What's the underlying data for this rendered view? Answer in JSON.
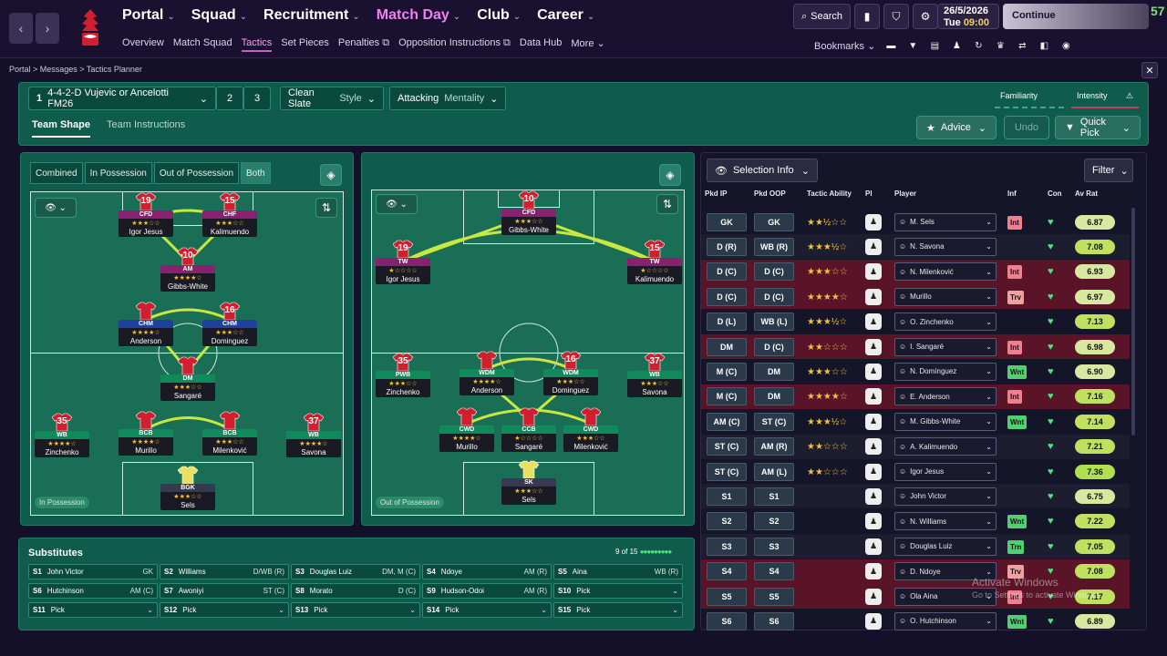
{
  "header": {
    "nav": [
      "Portal",
      "Squad",
      "Recruitment",
      "Match Day",
      "Club",
      "Career"
    ],
    "subnav": [
      "Overview",
      "Match Squad",
      "Tactics",
      "Set Pieces",
      "Penalties",
      "Opposition Instructions",
      "Data Hub",
      "More"
    ],
    "search": "Search",
    "date": "26/5/2026",
    "day": "Tue",
    "time": "09:00",
    "continue": "Continue",
    "speed": "57",
    "bookmarks": "Bookmarks"
  },
  "breadcrumb": "Portal > Messages > Tactics Planner",
  "tactic": {
    "slot": "1",
    "name": "4-4-2-D Vujevic or Ancelotti FM26",
    "slot2": "2",
    "slot3": "3",
    "style_value": "Clean Slate",
    "style_label": "Style",
    "mentality_value": "Attacking",
    "mentality_label": "Mentality",
    "familiarity": "Familiarity",
    "intensity": "Intensity"
  },
  "tabs": {
    "shape": "Team Shape",
    "instructions": "Team Instructions"
  },
  "actions": {
    "advice": "Advice",
    "undo": "Undo",
    "quick_pick": "Quick Pick"
  },
  "modes": [
    "Combined",
    "In Possession",
    "Out of Possession",
    "Both"
  ],
  "pitch_labels": {
    "in": "In Possession",
    "out": "Out of Possession"
  },
  "in_possession": [
    {
      "num": "19",
      "role": "CFD",
      "name": "Igor Jesus",
      "stars": "★★★☆☆",
      "cls": "r-att"
    },
    {
      "num": "15",
      "role": "CHF",
      "name": "Kalimuendo",
      "stars": "★★★☆☆",
      "cls": "r-att"
    },
    {
      "num": "10",
      "role": "AM",
      "name": "Gibbs-White",
      "stars": "★★★★☆",
      "cls": "r-am"
    },
    {
      "num": "",
      "role": "CHM",
      "name": "Anderson",
      "stars": "★★★★☆",
      "cls": "r-cm"
    },
    {
      "num": "16",
      "role": "CHM",
      "name": "Dominguez",
      "stars": "★★★☆☆",
      "cls": "r-cm"
    },
    {
      "num": "",
      "role": "DM",
      "name": "Sangaré",
      "stars": "★★★☆☆",
      "cls": "r-dm"
    },
    {
      "num": "35",
      "role": "WB",
      "name": "Zinchenko",
      "stars": "★★★★☆",
      "cls": "r-def"
    },
    {
      "num": "",
      "role": "BCB",
      "name": "Murillo",
      "stars": "★★★★☆",
      "cls": "r-def"
    },
    {
      "num": "",
      "role": "BCB",
      "name": "Milenković",
      "stars": "★★★☆☆",
      "cls": "r-def"
    },
    {
      "num": "37",
      "role": "WB",
      "name": "Savona",
      "stars": "★★★★☆",
      "cls": "r-def"
    },
    {
      "num": "",
      "role": "BGK",
      "name": "Sels",
      "stars": "★★★☆☆",
      "cls": "r-gk"
    }
  ],
  "out_possession": [
    {
      "num": "10",
      "role": "CFD",
      "name": "Gibbs-White",
      "stars": "★★★☆☆",
      "cls": "r-att"
    },
    {
      "num": "19",
      "role": "TW",
      "name": "Igor Jesus",
      "stars": "★☆☆☆☆",
      "cls": "r-att"
    },
    {
      "num": "15",
      "role": "TW",
      "name": "Kalimuendo",
      "stars": "★☆☆☆☆",
      "cls": "r-att"
    },
    {
      "num": "35",
      "role": "PWB",
      "name": "Zinchenko",
      "stars": "★★★☆☆",
      "cls": "r-def"
    },
    {
      "num": "",
      "role": "WDM",
      "name": "Anderson",
      "stars": "★★★★☆",
      "cls": "r-def"
    },
    {
      "num": "16",
      "role": "WDM",
      "name": "Dominguez",
      "stars": "★★★☆☆",
      "cls": "r-def"
    },
    {
      "num": "37",
      "role": "WB",
      "name": "Savona",
      "stars": "★★★☆☆",
      "cls": "r-def"
    },
    {
      "num": "",
      "role": "CWD",
      "name": "Murillo",
      "stars": "★★★★☆",
      "cls": "r-def"
    },
    {
      "num": "",
      "role": "CCB",
      "name": "Sangaré",
      "stars": "★☆☆☆☆",
      "cls": "r-def"
    },
    {
      "num": "",
      "role": "CWD",
      "name": "Milenković",
      "stars": "★★★☆☆",
      "cls": "r-def"
    },
    {
      "num": "",
      "role": "SK",
      "name": "Sels",
      "stars": "★★★☆☆",
      "cls": "r-gk"
    }
  ],
  "selection": {
    "info": "Selection Info",
    "filter": "Filter",
    "headers": [
      "Pkd IP",
      "Pkd OOP",
      "Tactic Ability",
      "PI",
      "Player",
      "Inf",
      "Con",
      "Av Rat"
    ],
    "rows": [
      {
        "ip": "GK",
        "oop": "GK",
        "stars": "★★½☆☆",
        "player": "M. Sels",
        "inf": "Int",
        "infcls": "int",
        "rat": "6.87",
        "ratc": "#d8e8a0",
        "hot": false
      },
      {
        "ip": "D (R)",
        "oop": "WB (R)",
        "stars": "★★★½☆",
        "player": "N. Savona",
        "inf": "",
        "infcls": "",
        "rat": "7.08",
        "ratc": "#c0e060",
        "hot": false
      },
      {
        "ip": "D (C)",
        "oop": "D (C)",
        "stars": "★★★☆☆",
        "player": "N. Milenković",
        "inf": "Int",
        "infcls": "int",
        "rat": "6.93",
        "ratc": "#d8e8a0",
        "hot": true
      },
      {
        "ip": "D (C)",
        "oop": "D (C)",
        "stars": "★★★★☆",
        "player": "Murillo",
        "inf": "Trv",
        "infcls": "trv",
        "rat": "6.97",
        "ratc": "#d8e8a0",
        "hot": true
      },
      {
        "ip": "D (L)",
        "oop": "WB (L)",
        "stars": "★★★½☆",
        "player": "O. Zinchenko",
        "inf": "",
        "infcls": "",
        "rat": "7.13",
        "ratc": "#c0e060",
        "hot": false
      },
      {
        "ip": "DM",
        "oop": "D (C)",
        "stars": "★★☆☆☆",
        "player": "I. Sangaré",
        "inf": "Int",
        "infcls": "int",
        "rat": "6.98",
        "ratc": "#d8e8a0",
        "hot": true
      },
      {
        "ip": "M (C)",
        "oop": "DM",
        "stars": "★★★☆☆",
        "player": "N. Domínguez",
        "inf": "Wnt",
        "infcls": "wnt",
        "rat": "6.90",
        "ratc": "#d8e8a0",
        "hot": false
      },
      {
        "ip": "M (C)",
        "oop": "DM",
        "stars": "★★★★☆",
        "player": "E. Anderson",
        "inf": "Int",
        "infcls": "int",
        "rat": "7.16",
        "ratc": "#c0e060",
        "hot": true
      },
      {
        "ip": "AM (C)",
        "oop": "ST (C)",
        "stars": "★★★½☆",
        "player": "M. Gibbs-White",
        "inf": "Wnt",
        "infcls": "wnt",
        "rat": "7.14",
        "ratc": "#c0e060",
        "hot": false
      },
      {
        "ip": "ST (C)",
        "oop": "AM (R)",
        "stars": "★★☆☆☆",
        "player": "A. Kalimuendo",
        "inf": "",
        "infcls": "",
        "rat": "7.21",
        "ratc": "#c0e060",
        "hot": false
      },
      {
        "ip": "ST (C)",
        "oop": "AM (L)",
        "stars": "★★☆☆☆",
        "player": "Igor Jesus",
        "inf": "",
        "infcls": "",
        "rat": "7.36",
        "ratc": "#b0e050",
        "hot": false
      },
      {
        "ip": "S1",
        "oop": "S1",
        "stars": "",
        "player": "John Victor",
        "inf": "",
        "infcls": "",
        "rat": "6.75",
        "ratc": "#d8e8a0",
        "hot": false
      },
      {
        "ip": "S2",
        "oop": "S2",
        "stars": "",
        "player": "N. Williams",
        "inf": "Wnt",
        "infcls": "wnt",
        "rat": "7.22",
        "ratc": "#c0e060",
        "hot": false
      },
      {
        "ip": "S3",
        "oop": "S3",
        "stars": "",
        "player": "Douglas Luiz",
        "inf": "Trn",
        "infcls": "trn",
        "rat": "7.05",
        "ratc": "#c0e060",
        "hot": false
      },
      {
        "ip": "S4",
        "oop": "S4",
        "stars": "",
        "player": "D. Ndoye",
        "inf": "Trv",
        "infcls": "trv",
        "rat": "7.08",
        "ratc": "#c0e060",
        "hot": true
      },
      {
        "ip": "S5",
        "oop": "S5",
        "stars": "",
        "player": "Ola Aina",
        "inf": "Int",
        "infcls": "int",
        "rat": "7.17",
        "ratc": "#c0e060",
        "hot": true
      },
      {
        "ip": "S6",
        "oop": "S6",
        "stars": "",
        "player": "O. Hutchinson",
        "inf": "Wnt",
        "infcls": "wnt",
        "rat": "6.89",
        "ratc": "#d8e8a0",
        "hot": false
      }
    ]
  },
  "substitutes": {
    "title": "Substitutes",
    "count": "9 of 15",
    "items": [
      {
        "s": "S1",
        "name": "John Victor",
        "pos": "GK"
      },
      {
        "s": "S2",
        "name": "Williams",
        "pos": "D/WB (R)"
      },
      {
        "s": "S3",
        "name": "Douglas Luiz",
        "pos": "DM, M (C)"
      },
      {
        "s": "S4",
        "name": "Ndoye",
        "pos": "AM (R)"
      },
      {
        "s": "S5",
        "name": "Aina",
        "pos": "WB (R)"
      },
      {
        "s": "S6",
        "name": "Hutchinson",
        "pos": "AM (C)"
      },
      {
        "s": "S7",
        "name": "Awoniyi",
        "pos": "ST (C)"
      },
      {
        "s": "S8",
        "name": "Morato",
        "pos": "D (C)"
      },
      {
        "s": "S9",
        "name": "Hudson-Odoi",
        "pos": "AM (R)"
      },
      {
        "s": "S10",
        "name": "Pick",
        "pos": "⌄"
      },
      {
        "s": "S11",
        "name": "Pick",
        "pos": "⌄"
      },
      {
        "s": "S12",
        "name": "Pick",
        "pos": "⌄"
      },
      {
        "s": "S13",
        "name": "Pick",
        "pos": "⌄"
      },
      {
        "s": "S14",
        "name": "Pick",
        "pos": "⌄"
      },
      {
        "s": "S15",
        "name": "Pick",
        "pos": "⌄"
      }
    ]
  },
  "watermark": {
    "line1": "Activate Windows",
    "line2": "Go to Settings to activate Windows."
  }
}
